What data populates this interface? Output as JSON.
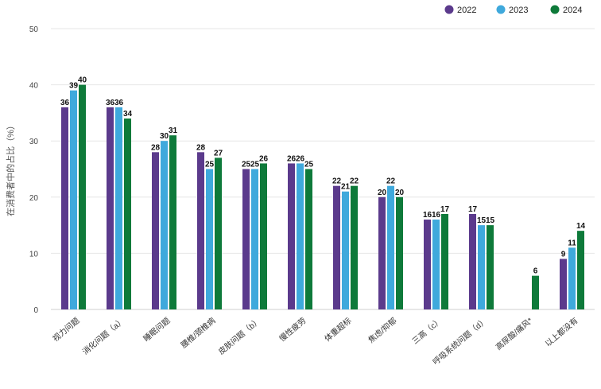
{
  "chart_data": {
    "type": "bar",
    "ylabel": "在消费者中的占比（%）",
    "ylim": [
      0,
      50
    ],
    "yticks": [
      0,
      10,
      20,
      30,
      40,
      50
    ],
    "grid": true,
    "legend_position": "top-right",
    "categories": [
      "视力问题",
      "消化问题（a）",
      "睡眠问题",
      "腰椎/颈椎病",
      "皮肤问题（b）",
      "慢性疲劳",
      "体重超标",
      "焦虑/抑郁",
      "三高（c）",
      "呼吸系统问题（d）",
      "高尿酸/痛风*",
      "以上都没有"
    ],
    "series": [
      {
        "name": "2022",
        "color": "#5b3a8c",
        "values": [
          36,
          36,
          28,
          28,
          25,
          26,
          22,
          20,
          16,
          17,
          null,
          9
        ]
      },
      {
        "name": "2023",
        "color": "#3fa9dc",
        "values": [
          39,
          36,
          30,
          25,
          25,
          26,
          21,
          22,
          16,
          15,
          null,
          11
        ]
      },
      {
        "name": "2024",
        "color": "#0e7a3a",
        "values": [
          40,
          34,
          31,
          27,
          26,
          25,
          22,
          20,
          17,
          15,
          6,
          14
        ]
      }
    ]
  }
}
